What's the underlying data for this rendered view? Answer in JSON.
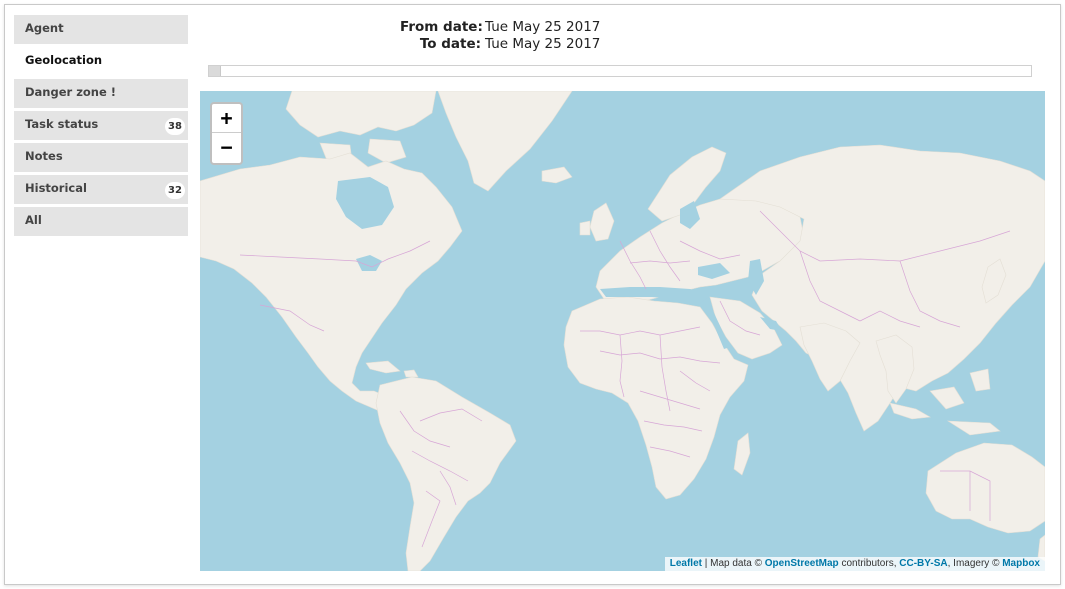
{
  "sidebar": {
    "items": [
      {
        "label": "Agent",
        "badge": null
      },
      {
        "label": "Geolocation",
        "badge": null
      },
      {
        "label": "Danger zone !",
        "badge": null
      },
      {
        "label": "Task status",
        "badge": "38"
      },
      {
        "label": "Notes",
        "badge": null
      },
      {
        "label": "Historical",
        "badge": "32"
      },
      {
        "label": "All",
        "badge": null
      }
    ],
    "active": "Geolocation"
  },
  "dates": {
    "from_label": "From date:",
    "from_value": "Tue May 25 2017",
    "to_label": "To date:",
    "to_value": "Tue May 25 2017"
  },
  "map": {
    "zoom_in": "+",
    "zoom_out": "−",
    "attribution": {
      "leaflet": "Leaflet",
      "sep": "|",
      "map_data": "Map data ©",
      "osm": "OpenStreetMap",
      "contributors": "contributors,",
      "license": "CC-BY-SA",
      "imagery": ", Imagery ©",
      "provider": "Mapbox"
    },
    "colors": {
      "water": "#a4d1e1",
      "land": "#f2efe9",
      "borders": "#d7a6d6"
    }
  }
}
